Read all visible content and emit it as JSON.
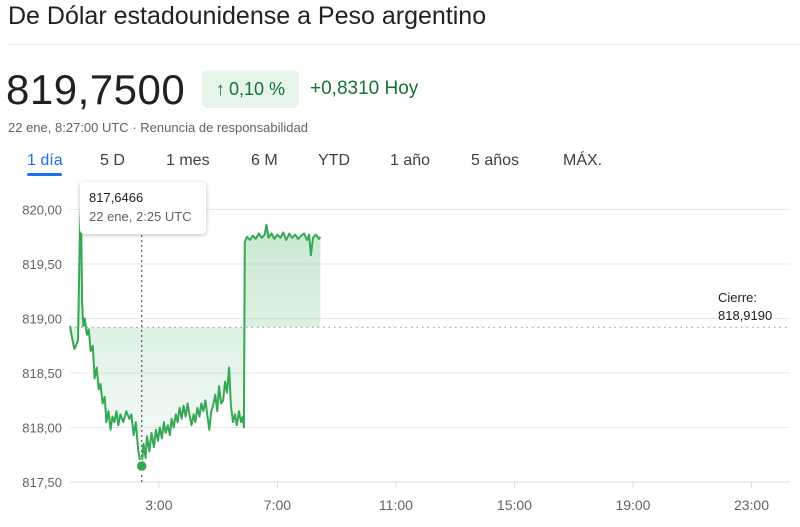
{
  "header": {
    "title": "De Dólar estadounidense a Peso argentino"
  },
  "quote": {
    "price": "819,7500",
    "percent_change": "0,10 %",
    "arrow_icon": "arrow-up-icon",
    "absolute_change": "+0,8310 Hoy",
    "timestamp": "22 ene, 8:27:00 UTC",
    "separator": "·",
    "disclaimer": "Renuncia de responsabilidad"
  },
  "tabs": [
    {
      "label": "1 día",
      "active": true
    },
    {
      "label": "5 D"
    },
    {
      "label": "1 mes"
    },
    {
      "label": "6 M"
    },
    {
      "label": "YTD"
    },
    {
      "label": "1 año"
    },
    {
      "label": "5 años"
    },
    {
      "label": "MÁX."
    }
  ],
  "tooltip": {
    "value": "817,6466",
    "time": "22 ene, 2:25 UTC"
  },
  "previous_close": {
    "label": "Cierre:",
    "value": "818,9190"
  },
  "colors": {
    "line": "#34a853",
    "positive": "#137333",
    "accent": "#1a73e8",
    "positive_bg": "#e6f4ea"
  },
  "chart_data": {
    "type": "line",
    "x_unit": "hours UTC",
    "xlim": [
      0,
      24.3
    ],
    "ylim": [
      817.5,
      820.3
    ],
    "y_ticks": [
      {
        "value": 817.5,
        "label": "817,50"
      },
      {
        "value": 818.0,
        "label": "818,00"
      },
      {
        "value": 818.5,
        "label": "818,50"
      },
      {
        "value": 819.0,
        "label": "819,00"
      },
      {
        "value": 819.5,
        "label": "819,50"
      },
      {
        "value": 820.0,
        "label": "820,00"
      }
    ],
    "x_ticks": [
      {
        "value": 3,
        "label": "3:00"
      },
      {
        "value": 7,
        "label": "7:00"
      },
      {
        "value": 11,
        "label": "11:00"
      },
      {
        "value": 15,
        "label": "15:00"
      },
      {
        "value": 19,
        "label": "19:00"
      },
      {
        "value": 23,
        "label": "23:00"
      }
    ],
    "previous_close": 818.919,
    "hover": {
      "x": 2.42,
      "y": 817.6466
    },
    "series": [
      {
        "points": [
          [
            0.0,
            818.93
          ],
          [
            0.05,
            818.85
          ],
          [
            0.1,
            818.78
          ],
          [
            0.15,
            818.72
          ],
          [
            0.2,
            818.75
          ],
          [
            0.27,
            818.8
          ],
          [
            0.33,
            819.75
          ],
          [
            0.37,
            820.0
          ],
          [
            0.41,
            819.15
          ],
          [
            0.45,
            818.93
          ],
          [
            0.5,
            819.0
          ],
          [
            0.57,
            818.85
          ],
          [
            0.63,
            818.9
          ],
          [
            0.7,
            818.7
          ],
          [
            0.77,
            818.75
          ],
          [
            0.83,
            818.45
          ],
          [
            0.9,
            818.55
          ],
          [
            0.97,
            818.35
          ],
          [
            1.03,
            818.4
          ],
          [
            1.1,
            818.22
          ],
          [
            1.17,
            818.28
          ],
          [
            1.23,
            818.05
          ],
          [
            1.3,
            818.15
          ],
          [
            1.37,
            817.98
          ],
          [
            1.43,
            818.1
          ],
          [
            1.5,
            818.05
          ],
          [
            1.57,
            818.15
          ],
          [
            1.63,
            818.02
          ],
          [
            1.7,
            818.12
          ],
          [
            1.8,
            818.05
          ],
          [
            1.9,
            818.15
          ],
          [
            2.0,
            818.08
          ],
          [
            2.07,
            818.12
          ],
          [
            2.15,
            817.93
          ],
          [
            2.22,
            818.05
          ],
          [
            2.3,
            817.8
          ],
          [
            2.36,
            817.7
          ],
          [
            2.42,
            817.6466
          ],
          [
            2.48,
            817.85
          ],
          [
            2.55,
            817.72
          ],
          [
            2.6,
            817.92
          ],
          [
            2.68,
            817.78
          ],
          [
            2.75,
            817.95
          ],
          [
            2.83,
            817.82
          ],
          [
            2.9,
            817.98
          ],
          [
            2.97,
            817.88
          ],
          [
            3.03,
            818.0
          ],
          [
            3.1,
            817.9
          ],
          [
            3.17,
            818.05
          ],
          [
            3.23,
            817.95
          ],
          [
            3.3,
            818.02
          ],
          [
            3.37,
            817.93
          ],
          [
            3.43,
            818.08
          ],
          [
            3.5,
            818.0
          ],
          [
            3.57,
            818.12
          ],
          [
            3.63,
            818.05
          ],
          [
            3.7,
            818.18
          ],
          [
            3.77,
            818.08
          ],
          [
            3.83,
            818.2
          ],
          [
            3.9,
            818.1
          ],
          [
            3.97,
            818.22
          ],
          [
            4.03,
            818.12
          ],
          [
            4.1,
            818.02
          ],
          [
            4.17,
            818.12
          ],
          [
            4.23,
            818.05
          ],
          [
            4.3,
            818.18
          ],
          [
            4.37,
            818.1
          ],
          [
            4.43,
            818.22
          ],
          [
            4.5,
            818.15
          ],
          [
            4.57,
            818.25
          ],
          [
            4.63,
            818.12
          ],
          [
            4.7,
            817.98
          ],
          [
            4.77,
            818.15
          ],
          [
            4.83,
            818.2
          ],
          [
            4.9,
            818.3
          ],
          [
            4.97,
            818.15
          ],
          [
            5.03,
            818.38
          ],
          [
            5.1,
            818.22
          ],
          [
            5.17,
            818.25
          ],
          [
            5.23,
            818.42
          ],
          [
            5.3,
            818.32
          ],
          [
            5.37,
            818.55
          ],
          [
            5.43,
            818.2
          ],
          [
            5.5,
            818.05
          ],
          [
            5.57,
            818.12
          ],
          [
            5.63,
            818.02
          ],
          [
            5.7,
            818.15
          ],
          [
            5.77,
            818.05
          ],
          [
            5.83,
            818.1
          ],
          [
            5.87,
            818.0
          ],
          [
            5.9,
            819.7
          ],
          [
            5.97,
            819.75
          ],
          [
            6.07,
            819.72
          ],
          [
            6.17,
            819.76
          ],
          [
            6.27,
            819.73
          ],
          [
            6.37,
            819.78
          ],
          [
            6.47,
            819.74
          ],
          [
            6.57,
            819.77
          ],
          [
            6.63,
            819.86
          ],
          [
            6.7,
            819.74
          ],
          [
            6.8,
            819.78
          ],
          [
            6.9,
            819.73
          ],
          [
            7.0,
            819.77
          ],
          [
            7.1,
            819.74
          ],
          [
            7.2,
            819.79
          ],
          [
            7.3,
            819.72
          ],
          [
            7.4,
            819.78
          ],
          [
            7.5,
            819.74
          ],
          [
            7.6,
            819.77
          ],
          [
            7.7,
            819.73
          ],
          [
            7.8,
            819.76
          ],
          [
            7.9,
            819.78
          ],
          [
            8.0,
            819.72
          ],
          [
            8.07,
            819.77
          ],
          [
            8.13,
            819.58
          ],
          [
            8.2,
            819.74
          ],
          [
            8.3,
            819.77
          ],
          [
            8.4,
            819.73
          ],
          [
            8.45,
            819.75
          ]
        ]
      }
    ]
  }
}
